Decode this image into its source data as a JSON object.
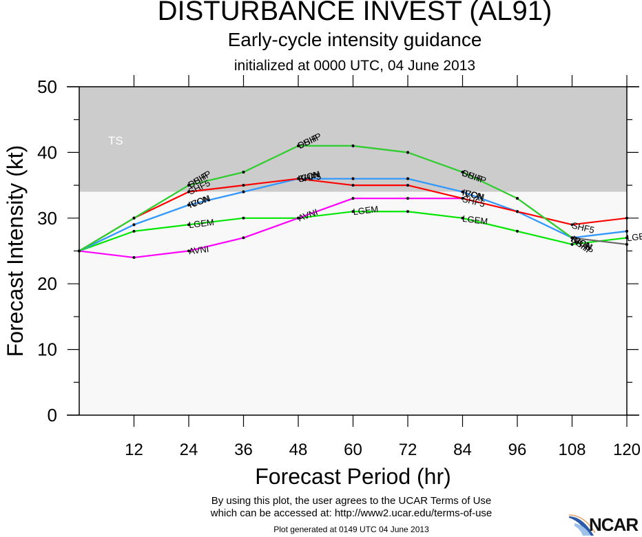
{
  "header": {
    "title": "DISTURBANCE INVEST (AL91)",
    "subtitle": "Early-cycle intensity guidance",
    "init": "initialized at 0000 UTC, 04 June 2013"
  },
  "footer": {
    "terms_line1": "By using this plot, the user agrees to the UCAR Terms of Use",
    "terms_line2": "which can be accessed at: http://www2.ucar.edu/terms-of-use",
    "generated": "Plot generated at 0149 UTC   04 June 2013",
    "logo": "NCAR"
  },
  "chart_data": {
    "type": "line",
    "title": "DISTURBANCE INVEST (AL91)",
    "xlabel": "Forecast Period (hr)",
    "ylabel": "Forecast Intensity (kt)",
    "xlim": [
      0,
      120
    ],
    "ylim": [
      0,
      50
    ],
    "xticks": [
      12,
      24,
      36,
      48,
      60,
      72,
      84,
      96,
      108,
      120
    ],
    "yticks": [
      0,
      10,
      20,
      30,
      40,
      50
    ],
    "bands": [
      {
        "label": "TS",
        "from": 34,
        "to": 50,
        "color": "#cccccc"
      },
      {
        "label": "",
        "from": 0,
        "to": 34,
        "color": "#f8f8f8"
      }
    ],
    "series": [
      {
        "name": "LGEM",
        "color": "#00e600",
        "x": [
          0,
          12,
          24,
          36,
          48,
          60,
          72,
          84,
          96,
          108,
          120
        ],
        "values": [
          25,
          28,
          29,
          30,
          30,
          31,
          31,
          30,
          28,
          26,
          27
        ],
        "label_at": [
          24,
          60,
          84,
          120
        ]
      },
      {
        "name": "AVNI",
        "color": "#ff00ff",
        "x": [
          0,
          12,
          24,
          36,
          48,
          60,
          72,
          84
        ],
        "values": [
          25,
          24,
          25,
          27,
          30,
          33,
          33,
          33
        ],
        "label_at": [
          24,
          48
        ]
      },
      {
        "name": "ICON",
        "color": "#3399ff",
        "x": [
          0,
          12,
          24,
          36,
          48,
          60,
          72,
          84,
          96,
          108,
          120
        ],
        "values": [
          25,
          29,
          32,
          34,
          36,
          36,
          36,
          34,
          31,
          27,
          28
        ],
        "label_at": [
          24,
          48,
          84,
          108
        ]
      },
      {
        "name": "IVCN",
        "color": "#3399ff",
        "x": [
          0,
          12,
          24,
          36,
          48,
          60,
          72,
          84,
          96,
          108,
          120
        ],
        "values": [
          25,
          29,
          32,
          34,
          36,
          36,
          36,
          34,
          31,
          27,
          28
        ],
        "label_at": [
          24,
          48,
          84,
          108
        ]
      },
      {
        "name": "SHF5",
        "color": "#ff0000",
        "x": [
          0,
          12,
          24,
          36,
          48,
          60,
          72,
          84,
          96,
          108,
          120
        ],
        "values": [
          25,
          30,
          34,
          35,
          36,
          35,
          35,
          33,
          31,
          29,
          30
        ],
        "label_at": [
          24,
          48,
          84,
          108
        ]
      },
      {
        "name": "DSHP",
        "color": "#33cc33",
        "x": [
          0,
          12,
          24,
          36,
          48,
          60,
          72,
          84,
          96,
          108
        ],
        "values": [
          25,
          30,
          35,
          37,
          41,
          41,
          40,
          37,
          33,
          27
        ],
        "label_at": [
          24,
          48,
          84,
          108
        ]
      },
      {
        "name": "SHIP",
        "color": "#33cc33",
        "x": [
          0,
          12,
          24,
          36,
          48,
          60,
          72,
          84,
          96,
          108
        ],
        "values": [
          25,
          30,
          35,
          37,
          41,
          41,
          40,
          37,
          33,
          27
        ],
        "label_at": [
          24,
          48,
          84,
          108
        ]
      },
      {
        "name": "",
        "color": "#666666",
        "x": [
          108,
          120
        ],
        "values": [
          27,
          26
        ],
        "label_at": []
      }
    ]
  }
}
